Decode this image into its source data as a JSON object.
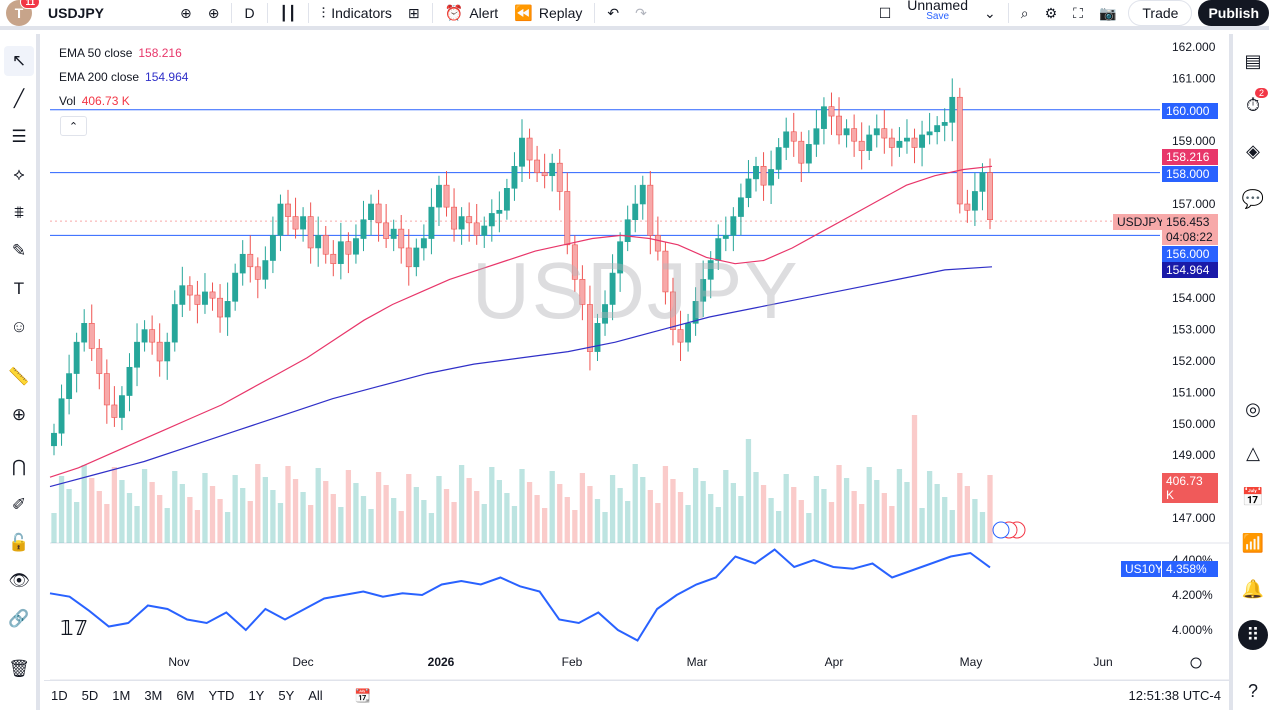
{
  "toolbar": {
    "avatar_letter": "T",
    "notifications": "11",
    "symbol": "USDJPY",
    "interval": "D",
    "indicators": "Indicators",
    "alert": "Alert",
    "replay": "Replay",
    "layout_name": "Unnamed",
    "layout_save": "Save",
    "trade": "Trade",
    "publish": "Publish"
  },
  "legend": {
    "ema50_label": "EMA 50 close",
    "ema50_value": "158.216",
    "ema50_color": "#e8366a",
    "ema200_label": "EMA 200 close",
    "ema200_value": "154.964",
    "ema200_color": "#3030c8",
    "vol_label": "Vol",
    "vol_value": "406.73 K",
    "vol_color": "#f23645"
  },
  "watermark": "USDJPY",
  "price_labels": {
    "hline_160": "160.000",
    "ema50": "158.216",
    "hline_158": "158.000",
    "symbol_tag": "USDJPY",
    "last_price": "156.453",
    "countdown": "04:08:22",
    "hline_156": "156.000",
    "ema200": "154.964",
    "volume": "406.73 K",
    "us10y_tag": "US10Y",
    "us10y_value": "4.358%"
  },
  "right_badge": "2",
  "bottom": {
    "ranges": [
      "1D",
      "5D",
      "1M",
      "3M",
      "6M",
      "YTD",
      "1Y",
      "5Y",
      "All"
    ],
    "clock": "12:51:38 UTC-4"
  },
  "chart_data": {
    "type": "candlestick",
    "title": "",
    "price_axis": [
      "162.000",
      "161.000",
      "160.000",
      "159.000",
      "158.000",
      "157.000",
      "156.000",
      "155.000",
      "154.000",
      "153.000",
      "152.000",
      "151.000",
      "150.000",
      "149.000",
      "148.000",
      "147.000"
    ],
    "us10y_axis": [
      "4.400%",
      "4.200%",
      "4.000%"
    ],
    "x_ticks": [
      "Nov",
      "Dec",
      "2026",
      "Feb",
      "Mar",
      "Apr",
      "May",
      "Jun"
    ],
    "horizontal_lines": [
      160.0,
      158.0,
      156.0
    ],
    "ohlc_close": [
      149.7,
      150.8,
      151.6,
      152.6,
      153.2,
      152.4,
      151.6,
      150.6,
      150.2,
      150.9,
      151.8,
      152.6,
      153.0,
      152.6,
      152.0,
      152.6,
      153.8,
      154.4,
      154.1,
      153.8,
      154.2,
      154.0,
      153.4,
      153.9,
      154.8,
      155.4,
      155.0,
      154.6,
      155.2,
      156.0,
      157.0,
      156.6,
      156.2,
      156.6,
      155.6,
      156.0,
      155.4,
      155.1,
      155.8,
      155.4,
      155.9,
      156.5,
      157.0,
      156.4,
      155.9,
      156.2,
      155.6,
      155.0,
      155.6,
      155.9,
      156.9,
      157.6,
      156.9,
      156.2,
      156.6,
      156.4,
      156.0,
      156.3,
      156.7,
      156.8,
      157.5,
      158.2,
      159.1,
      158.4,
      158.0,
      157.9,
      158.3,
      157.4,
      155.7,
      154.6,
      153.8,
      152.3,
      153.2,
      153.8,
      154.8,
      155.8,
      156.5,
      157.0,
      157.6,
      156.0,
      155.5,
      154.2,
      153.0,
      152.6,
      153.2,
      153.9,
      154.6,
      155.2,
      155.9,
      156.0,
      156.6,
      157.2,
      157.8,
      158.2,
      157.6,
      158.1,
      158.8,
      159.3,
      159.0,
      158.3,
      158.9,
      159.4,
      160.1,
      159.8,
      159.2,
      159.4,
      159.0,
      158.7,
      159.2,
      159.4,
      159.1,
      158.8,
      159.0,
      159.1,
      158.8,
      159.2,
      159.3,
      159.5,
      159.6,
      160.4,
      157.0,
      156.8,
      157.4,
      158.0,
      156.5
    ],
    "ema50": [
      148.3,
      148.6,
      149.0,
      149.4,
      149.8,
      150.2,
      150.6,
      151.1,
      151.6,
      152.1,
      152.7,
      153.3,
      153.8,
      154.2,
      154.6,
      154.9,
      155.2,
      155.5,
      155.7,
      155.9,
      156.0,
      155.9,
      155.7,
      155.3,
      155.1,
      155.2,
      155.6,
      156.1,
      156.6,
      157.1,
      157.6,
      157.9,
      158.1,
      158.2
    ],
    "ema200": [
      148.0,
      148.4,
      148.8,
      149.3,
      149.8,
      150.3,
      150.8,
      151.2,
      151.6,
      151.9,
      152.1,
      152.3,
      152.6,
      153.0,
      153.4,
      153.7,
      154.0,
      154.3,
      154.6,
      154.9,
      155.0
    ],
    "us10y": [
      4.21,
      4.19,
      4.11,
      4.02,
      4.04,
      4.14,
      4.12,
      4.06,
      4.04,
      4.1,
      4.0,
      4.12,
      4.06,
      4.12,
      4.18,
      4.2,
      4.22,
      4.19,
      4.21,
      4.2,
      4.26,
      4.28,
      4.26,
      4.3,
      4.25,
      4.22,
      4.06,
      4.04,
      4.1,
      4.0,
      3.94,
      4.12,
      4.2,
      4.26,
      4.3,
      4.42,
      4.38,
      4.46,
      4.36,
      4.4,
      4.36,
      4.35,
      4.38,
      4.3,
      4.34,
      4.38,
      4.42,
      4.44,
      4.358
    ],
    "last_close": 156.453
  }
}
